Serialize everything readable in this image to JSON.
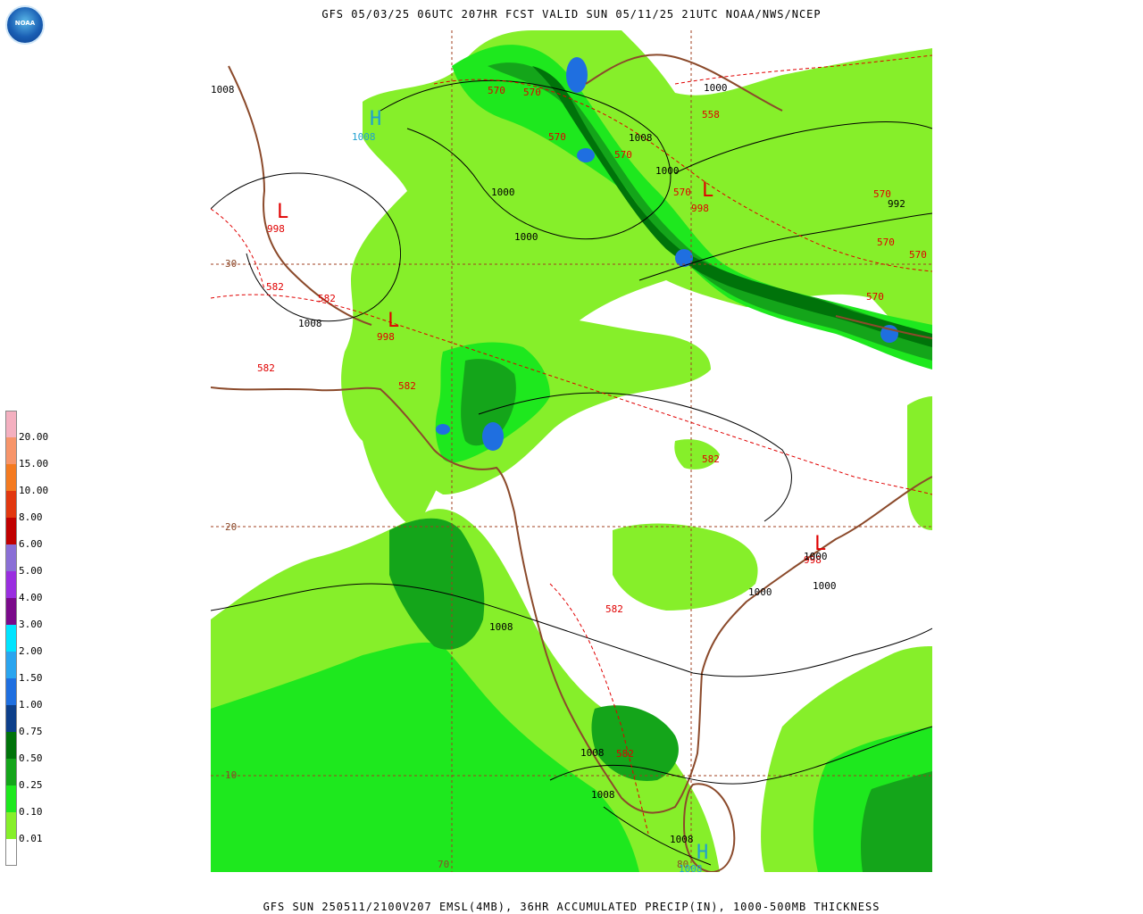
{
  "header": {
    "title": "GFS 05/03/25 06UTC 207HR FCST VALID SUN 05/11/25 21UTC NOAA/NWS/NCEP",
    "logo_text": "NOAA"
  },
  "footer": {
    "caption": "GFS SUN 250511/2100V207 EMSL(4MB), 36HR ACCUMULATED PRECIP(IN), 1000-500MB THICKNESS"
  },
  "legend": {
    "items": [
      {
        "label": "20.00",
        "color": "#f4b0c0"
      },
      {
        "label": "15.00",
        "color": "#f7956a"
      },
      {
        "label": "10.00",
        "color": "#f47a20"
      },
      {
        "label": "8.00",
        "color": "#e2370f"
      },
      {
        "label": "6.00",
        "color": "#c00000"
      },
      {
        "label": "5.00",
        "color": "#8a6fd6"
      },
      {
        "label": "4.00",
        "color": "#9a2ee0"
      },
      {
        "label": "3.00",
        "color": "#7a0a8a"
      },
      {
        "label": "2.00",
        "color": "#00e4ff"
      },
      {
        "label": "1.50",
        "color": "#2aa5ef"
      },
      {
        "label": "1.00",
        "color": "#1f6fe0"
      },
      {
        "label": "0.75",
        "color": "#0d3f8a"
      },
      {
        "label": "0.50",
        "color": "#00730a"
      },
      {
        "label": "0.25",
        "color": "#14a51a"
      },
      {
        "label": "0.10",
        "color": "#1ee81e"
      },
      {
        "label": "0.01",
        "color": "#86ef2a"
      },
      {
        "label": "",
        "color": "#ffffff"
      }
    ]
  },
  "map": {
    "lat_labels": [
      "30",
      "20",
      "10"
    ],
    "lon_labels": [
      "70",
      "80"
    ],
    "pressure_centers": [
      {
        "symbol": "H",
        "value": "1008",
        "type": "high"
      },
      {
        "symbol": "L",
        "value": "998",
        "type": "low"
      },
      {
        "symbol": "L",
        "value": "998",
        "type": "low"
      },
      {
        "symbol": "L",
        "value": "998",
        "type": "low"
      },
      {
        "symbol": "L",
        "value": "998",
        "type": "low"
      },
      {
        "symbol": "H",
        "value": "1008",
        "type": "high"
      }
    ],
    "isobar_labels": [
      "1008",
      "1000",
      "1000",
      "1008",
      "1000",
      "1000",
      "992",
      "1008",
      "1000",
      "1000",
      "1000",
      "1008",
      "1008",
      "1008",
      "1008"
    ],
    "thickness_labels": [
      "570",
      "570",
      "570",
      "570",
      "558",
      "570",
      "570",
      "570",
      "570",
      "570",
      "582",
      "582",
      "582",
      "582",
      "582",
      "582",
      "582"
    ],
    "colors": {
      "light_green": "#86ef2a",
      "green": "#1ee81e",
      "mid_green": "#14a51a",
      "dark_green": "#00730a",
      "navy": "#0d3f8a",
      "blue": "#1f6fe0",
      "coast": "#8b4a2b",
      "thickness": "#e00000",
      "isobar": "#000000",
      "high": "#20a0d0"
    }
  }
}
